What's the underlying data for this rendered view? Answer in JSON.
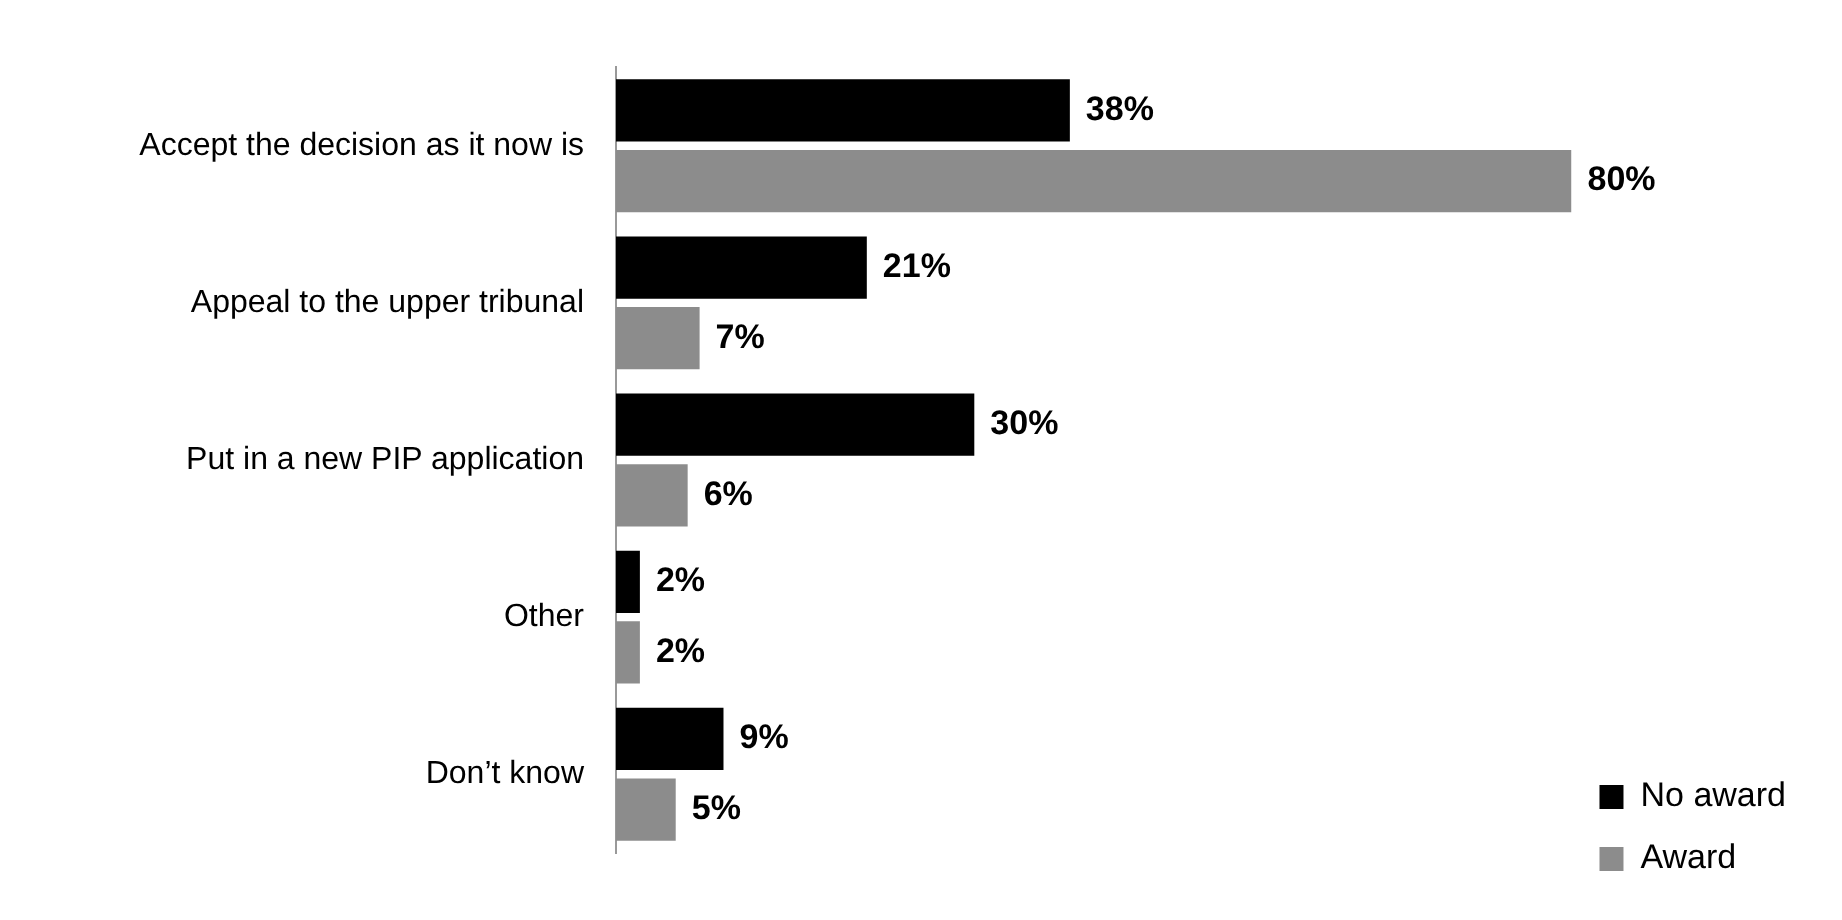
{
  "chart_data": {
    "type": "bar",
    "orientation": "horizontal",
    "categories": [
      "Accept the decision as it now is",
      "Appeal to the upper tribunal",
      "Put in a new PIP application",
      "Other",
      "Don’t know"
    ],
    "series": [
      {
        "name": "No award",
        "color": "#000000",
        "values": [
          38,
          21,
          30,
          2,
          9
        ],
        "value_labels": [
          "38%",
          "21%",
          "30%",
          "2%",
          "9%"
        ]
      },
      {
        "name": "Award",
        "color": "#8c8c8c",
        "values": [
          80,
          7,
          6,
          2,
          5
        ],
        "value_labels": [
          "80%",
          "7%",
          "6%",
          "2%",
          "5%"
        ]
      }
    ],
    "legend": "bottom right",
    "tick_labels": "y"
  }
}
